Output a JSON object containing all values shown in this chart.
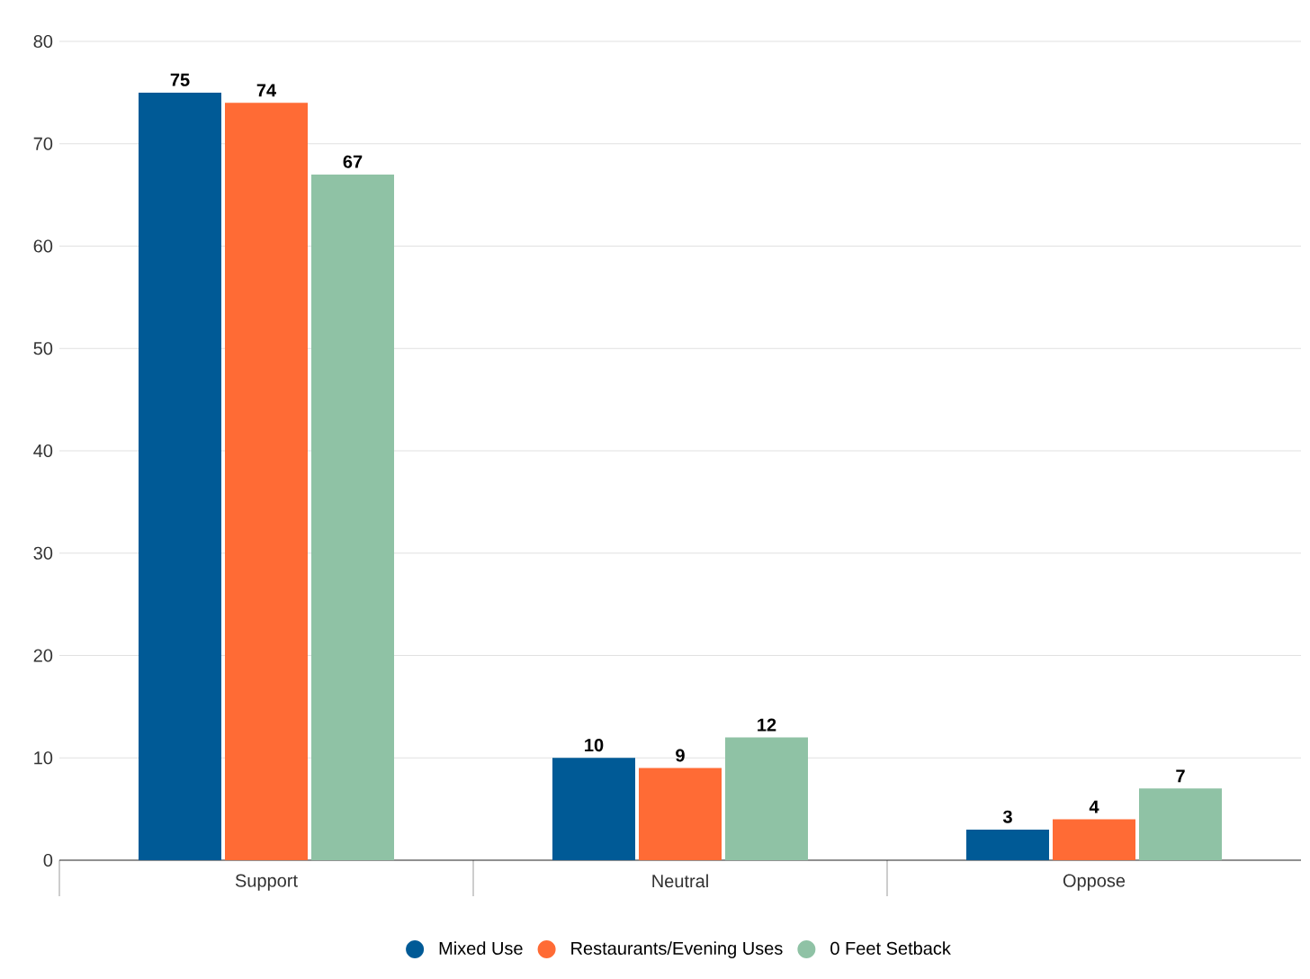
{
  "chart_data": {
    "type": "bar",
    "categories": [
      "Support",
      "Neutral",
      "Oppose"
    ],
    "series": [
      {
        "name": "Mixed Use",
        "color": "#005a96",
        "values": [
          75,
          10,
          3
        ]
      },
      {
        "name": "Restaurants/Evening Uses",
        "color": "#ff6b35",
        "values": [
          74,
          9,
          4
        ]
      },
      {
        "name": "0 Feet Setback",
        "color": "#8fc2a5",
        "values": [
          67,
          12,
          7
        ]
      }
    ],
    "ylim": [
      0,
      80
    ],
    "yticks": [
      0,
      10,
      20,
      30,
      40,
      50,
      60,
      70,
      80
    ],
    "grid": "y",
    "legend": "bottom",
    "data_labels": true
  }
}
